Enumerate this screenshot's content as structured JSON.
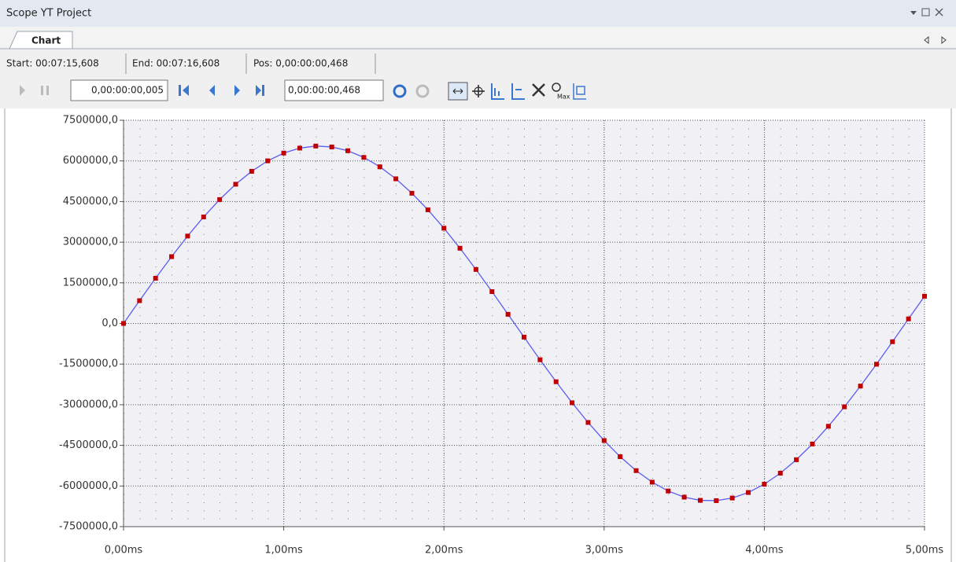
{
  "window": {
    "title": "Scope YT Project",
    "tab": "Chart",
    "status": {
      "start": "Start:  00:07:15,608",
      "end": "End:  00:07:16,608",
      "pos": "Pos:  0,00:00:00,468"
    },
    "toolbar": {
      "step": "0,00:00:00,005",
      "position": "0,00:00:00,468",
      "max_icon": "Max"
    }
  },
  "chart_data": {
    "type": "line",
    "x": [
      0,
      0.1,
      0.2,
      0.3,
      0.4,
      0.5,
      0.6,
      0.7,
      0.8,
      0.9,
      1.0,
      1.1,
      1.2,
      1.3,
      1.4,
      1.5,
      1.6,
      1.7,
      1.8,
      1.9,
      2.0,
      2.1,
      2.2,
      2.3,
      2.4,
      2.5,
      2.6,
      2.7,
      2.8,
      2.9,
      3.0,
      3.1,
      3.2,
      3.3,
      3.4,
      3.5,
      3.6,
      3.7,
      3.8,
      3.9,
      4.0,
      4.1,
      4.2,
      4.3,
      4.4,
      4.5,
      4.6,
      4.7,
      4.8,
      4.9,
      5.0
    ],
    "series": [
      {
        "color": "#5c5cf0",
        "marker_color": "#c00000",
        "values": [
          0,
          841000,
          1668000,
          2467000,
          3226000,
          3931000,
          4573000,
          5139000,
          5616000,
          6002000,
          6289000,
          6472000,
          6548000,
          6515000,
          6375000,
          6129000,
          5782000,
          5339000,
          4806000,
          4195000,
          3516000,
          2777000,
          1992000,
          1175000,
          337000,
          -505000,
          -1340000,
          -2152000,
          -2928000,
          -3655000,
          -4322000,
          -4919000,
          -5432000,
          -5859000,
          -6186000,
          -6412000,
          -6530000,
          -6541000,
          -6444000,
          -6240000,
          -5933000,
          -5527000,
          -5030000,
          -4450000,
          -3796000,
          -3078000,
          -2311000,
          -1505000,
          -674000,
          168000,
          1004000
        ]
      }
    ],
    "xlim": [
      0,
      5
    ],
    "xticks": [
      {
        "value": 0,
        "label": "0,00ms"
      },
      {
        "value": 1,
        "label": "1,00ms"
      },
      {
        "value": 2,
        "label": "2,00ms"
      },
      {
        "value": 3,
        "label": "3,00ms"
      },
      {
        "value": 4,
        "label": "4,00ms"
      },
      {
        "value": 5,
        "label": "5,00ms"
      }
    ],
    "ylim": [
      -7500000,
      7500000
    ],
    "yticks": [
      {
        "value": 7500000,
        "label": "7500000,0"
      },
      {
        "value": 6000000,
        "label": "6000000,0"
      },
      {
        "value": 4500000,
        "label": "4500000,0"
      },
      {
        "value": 3000000,
        "label": "3000000,0"
      },
      {
        "value": 1500000,
        "label": "1500000,0"
      },
      {
        "value": 0,
        "label": "0,0"
      },
      {
        "value": -1500000,
        "label": "-1500000,0"
      },
      {
        "value": -3000000,
        "label": "-3000000,0"
      },
      {
        "value": -4500000,
        "label": "-4500000,0"
      },
      {
        "value": -6000000,
        "label": "-6000000,0"
      },
      {
        "value": -7500000,
        "label": "-7500000,0"
      }
    ],
    "grid": true
  }
}
